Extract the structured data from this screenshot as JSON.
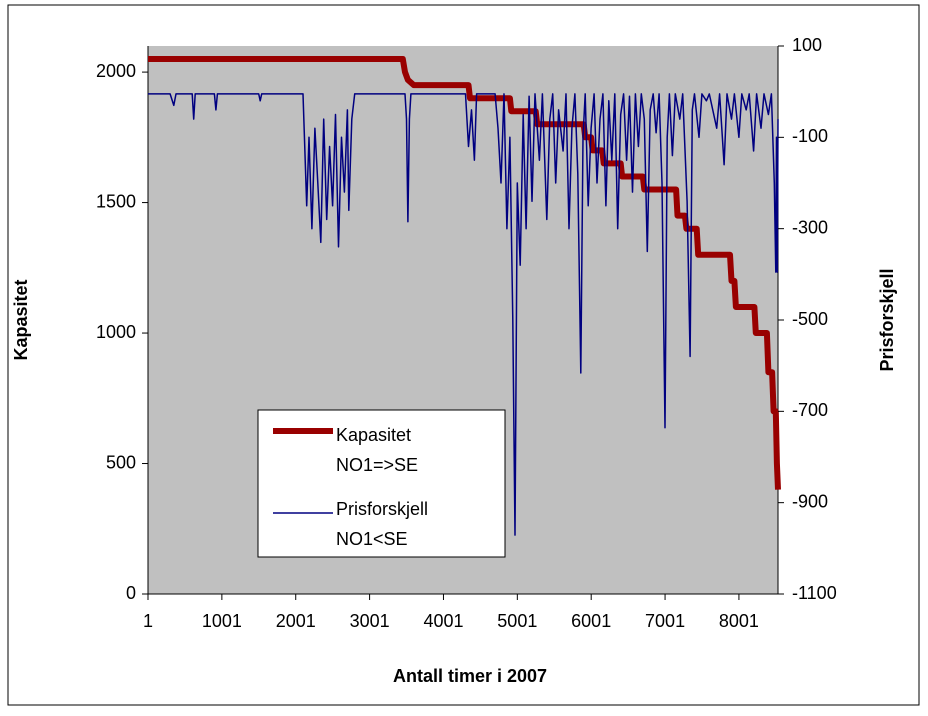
{
  "chart_data": {
    "type": "line",
    "xlabel": "Antall timer i 2007",
    "ylabel": "Kapasitet",
    "y2label": "Prisforskjell",
    "xlim": [
      1,
      8530
    ],
    "xticks": [
      1,
      1001,
      2001,
      3001,
      4001,
      5001,
      6001,
      7001,
      8001
    ],
    "ylim": [
      0,
      2100
    ],
    "yticks": [
      0,
      500,
      1000,
      1500,
      2000
    ],
    "y2lim": [
      -1100,
      100
    ],
    "y2ticks": [
      -1100,
      -900,
      -700,
      -500,
      -300,
      -100,
      100
    ],
    "legend": "lower-left",
    "series": [
      {
        "name": "Kapasitet NO1=>SE",
        "color": "#990000",
        "axis": "y",
        "x": [
          1,
          3450,
          3480,
          3520,
          3600,
          4340,
          4360,
          4900,
          4920,
          5250,
          5270,
          5900,
          5920,
          6000,
          6020,
          6150,
          6170,
          6400,
          6420,
          6700,
          6720,
          7150,
          7170,
          7270,
          7290,
          7430,
          7450,
          7880,
          7900,
          7940,
          7960,
          8210,
          8230,
          8380,
          8400,
          8450,
          8470,
          8500,
          8515,
          8530
        ],
        "values": [
          2050,
          2050,
          2000,
          1970,
          1950,
          1950,
          1900,
          1900,
          1850,
          1850,
          1800,
          1800,
          1750,
          1750,
          1700,
          1700,
          1650,
          1650,
          1600,
          1600,
          1550,
          1550,
          1450,
          1450,
          1400,
          1400,
          1300,
          1300,
          1200,
          1200,
          1100,
          1100,
          1000,
          1000,
          850,
          850,
          700,
          700,
          500,
          400
        ]
      },
      {
        "name": "Prisforskjell NO1<SE",
        "color": "#000080",
        "axis": "y2",
        "x": [
          1,
          300,
          350,
          380,
          600,
          620,
          640,
          900,
          920,
          940,
          1500,
          1520,
          1540,
          2050,
          2100,
          2150,
          2180,
          2220,
          2260,
          2300,
          2340,
          2380,
          2420,
          2460,
          2500,
          2540,
          2580,
          2620,
          2660,
          2700,
          2720,
          2760,
          2800,
          3480,
          3500,
          3520,
          3540,
          3560,
          4300,
          4340,
          4380,
          4420,
          4450,
          4700,
          4740,
          4780,
          4820,
          4860,
          4900,
          4940,
          4970,
          5000,
          5040,
          5080,
          5120,
          5160,
          5200,
          5240,
          5300,
          5340,
          5400,
          5440,
          5480,
          5520,
          5560,
          5620,
          5660,
          5700,
          5740,
          5780,
          5820,
          5860,
          5890,
          5920,
          5960,
          6000,
          6040,
          6080,
          6120,
          6160,
          6200,
          6240,
          6280,
          6320,
          6360,
          6400,
          6440,
          6480,
          6520,
          6560,
          6600,
          6640,
          6680,
          6720,
          6760,
          6800,
          6840,
          6880,
          6920,
          6960,
          7000,
          7030,
          7060,
          7100,
          7140,
          7200,
          7240,
          7300,
          7340,
          7370,
          7400,
          7460,
          7500,
          7560,
          7600,
          7700,
          7740,
          7800,
          7840,
          7900,
          7940,
          8000,
          8040,
          8100,
          8140,
          8200,
          8240,
          8300,
          8340,
          8400,
          8440,
          8480,
          8500,
          8510,
          8520,
          8530
        ],
        "values": [
          -5,
          -5,
          -30,
          -5,
          -5,
          -60,
          -5,
          -5,
          -40,
          -5,
          -5,
          -20,
          -5,
          -5,
          -5,
          -250,
          -100,
          -300,
          -80,
          -200,
          -330,
          -60,
          -280,
          -120,
          -250,
          -50,
          -340,
          -100,
          -220,
          -40,
          -260,
          -60,
          -5,
          -5,
          -60,
          -285,
          -60,
          -5,
          -5,
          -120,
          -40,
          -150,
          -5,
          -5,
          -80,
          -200,
          -5,
          -300,
          -100,
          -500,
          -971,
          -200,
          -380,
          -50,
          -300,
          -10,
          -240,
          -5,
          -150,
          -5,
          -280,
          -60,
          -5,
          -200,
          -40,
          -130,
          -5,
          -300,
          -80,
          -5,
          -180,
          -616,
          -100,
          -5,
          -250,
          -80,
          -5,
          -200,
          -60,
          -5,
          -250,
          -20,
          -150,
          -5,
          -300,
          -50,
          -5,
          -150,
          -10,
          -220,
          -5,
          -120,
          -5,
          -60,
          -350,
          -40,
          -5,
          -90,
          -5,
          -200,
          -736,
          -100,
          -5,
          -140,
          -5,
          -60,
          -5,
          -240,
          -580,
          -40,
          -5,
          -100,
          -5,
          -20,
          -5,
          -80,
          -5,
          -160,
          -5,
          -60,
          -5,
          -100,
          -5,
          -40,
          -5,
          -130,
          -5,
          -80,
          -5,
          -50,
          -5,
          -200,
          -395,
          -100,
          -395,
          -60
        ]
      }
    ]
  }
}
